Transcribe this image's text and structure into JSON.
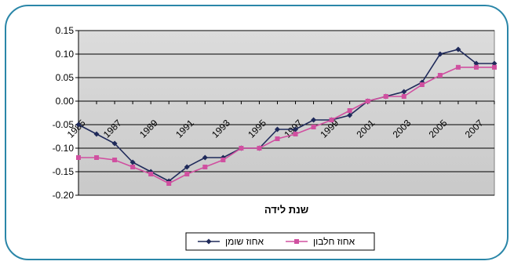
{
  "chart_data": {
    "type": "line",
    "title": "",
    "xlabel": "שנת לידה",
    "ylabel": "",
    "ylim": [
      -0.2,
      0.15
    ],
    "yticks": [
      "0.15",
      "0.10",
      "0.05",
      "0.00",
      "-0.05",
      "-0.10",
      "-0.15",
      "-0.20"
    ],
    "ytick_values": [
      0.15,
      0.1,
      0.05,
      0.0,
      -0.05,
      -0.1,
      -0.15,
      -0.2
    ],
    "x": [
      1985,
      1986,
      1987,
      1988,
      1989,
      1990,
      1991,
      1992,
      1993,
      1994,
      1995,
      1996,
      1997,
      1998,
      1999,
      2000,
      2001,
      2002,
      2003,
      2004,
      2005,
      2006,
      2007,
      2008
    ],
    "xtick_labels": [
      "1985",
      "1987",
      "1989",
      "1991",
      "1993",
      "1995",
      "1997",
      "1999",
      "2001",
      "2003",
      "2005",
      "2007"
    ],
    "xtick_positions": [
      1985,
      1987,
      1989,
      1991,
      1993,
      1995,
      1997,
      1999,
      2001,
      2003,
      2005,
      2007
    ],
    "grid": true,
    "legend_position": "bottom",
    "series": [
      {
        "name": "אחוז שומן",
        "color": "#1f2a5a",
        "marker": "diamond",
        "values": [
          -0.05,
          -0.07,
          -0.09,
          -0.13,
          -0.15,
          -0.17,
          -0.14,
          -0.12,
          -0.12,
          -0.1,
          -0.1,
          -0.06,
          -0.06,
          -0.04,
          -0.04,
          -0.03,
          0.0,
          0.01,
          0.02,
          0.04,
          0.1,
          0.11,
          0.08,
          0.08
        ]
      },
      {
        "name": "אחוז חלבון",
        "color": "#d050a0",
        "marker": "square",
        "values": [
          -0.12,
          -0.12,
          -0.125,
          -0.14,
          -0.155,
          -0.175,
          -0.155,
          -0.14,
          -0.125,
          -0.1,
          -0.1,
          -0.08,
          -0.07,
          -0.055,
          -0.04,
          -0.02,
          0.0,
          0.01,
          0.01,
          0.035,
          0.055,
          0.072,
          0.072,
          0.072
        ]
      }
    ]
  }
}
